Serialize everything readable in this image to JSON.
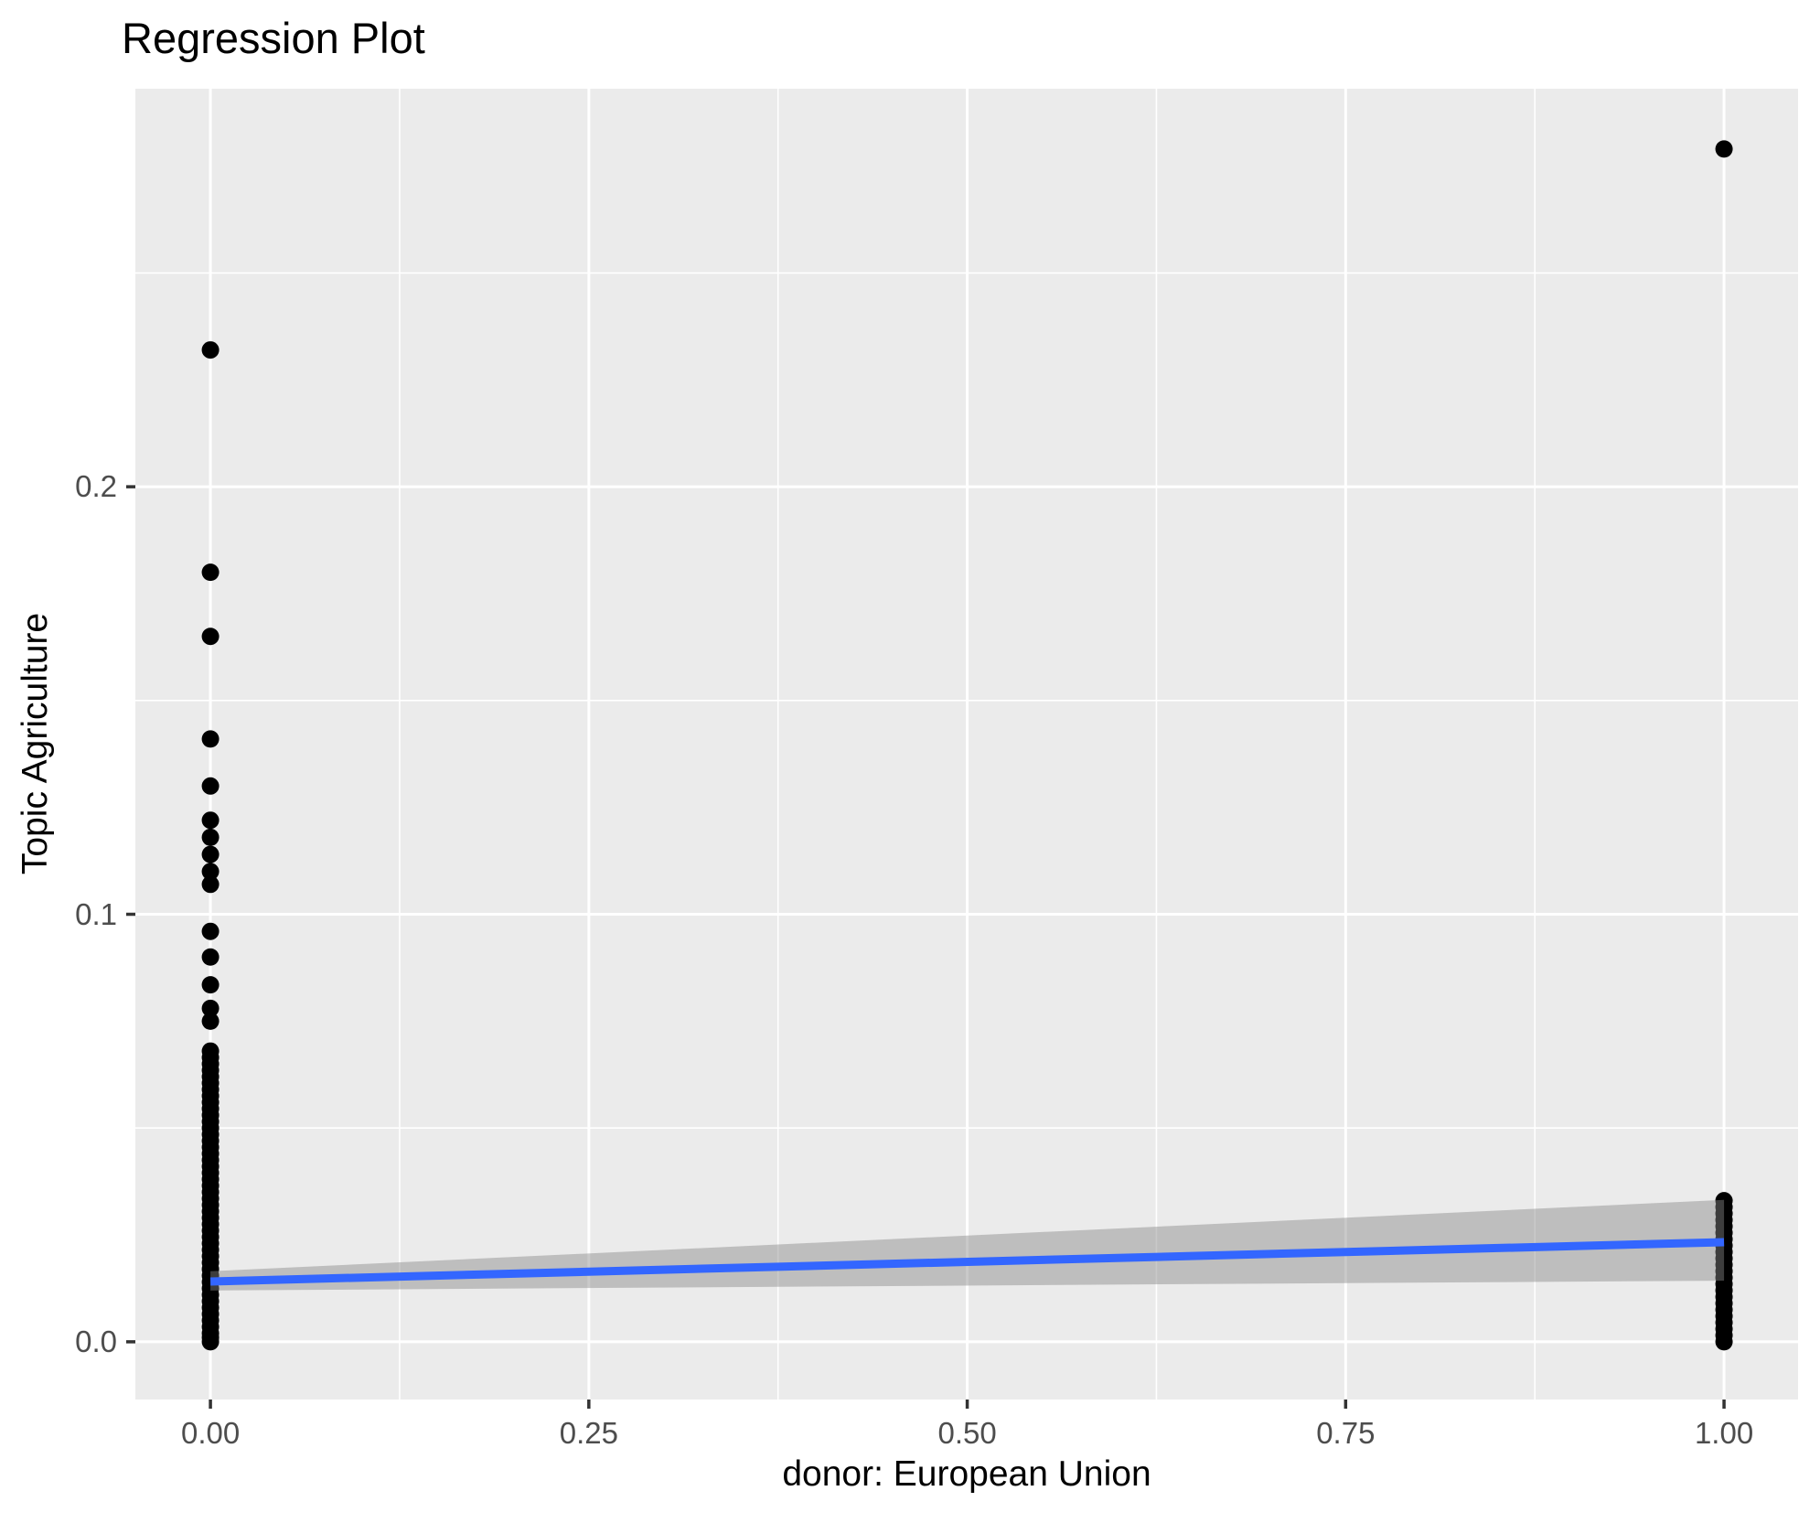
{
  "chart_data": {
    "type": "scatter",
    "title": "Regression Plot",
    "xlabel": "donor: European Union",
    "ylabel": "Topic Agriculture",
    "legend": "none",
    "grid": "on",
    "x_range": [
      -0.0496,
      1.0489
    ],
    "y_range": [
      -0.0135,
      0.2931
    ],
    "x_ticks": [
      {
        "v": 0.0,
        "label": "0.00"
      },
      {
        "v": 0.25,
        "label": "0.25"
      },
      {
        "v": 0.5,
        "label": "0.50"
      },
      {
        "v": 0.75,
        "label": "0.75"
      },
      {
        "v": 1.0,
        "label": "1.00"
      }
    ],
    "y_ticks": [
      {
        "v": 0.0,
        "label": "0.0"
      },
      {
        "v": 0.1,
        "label": "0.1"
      },
      {
        "v": 0.2,
        "label": "0.2"
      }
    ],
    "x_minor": [
      0.125,
      0.375,
      0.625,
      0.875
    ],
    "y_minor": [
      0.05,
      0.15,
      0.25
    ],
    "series": [
      {
        "name": "donor = 0",
        "x": 0,
        "y": [
          0.232,
          0.18,
          0.165,
          0.141,
          0.13,
          0.122,
          0.118,
          0.114,
          0.11,
          0.107,
          0.096,
          0.09,
          0.0835,
          0.078,
          0.075,
          0.068,
          0.0665,
          0.065,
          0.0635,
          0.062,
          0.0605,
          0.059,
          0.0575,
          0.056,
          0.0545,
          0.053,
          0.0515,
          0.05,
          0.0485,
          0.047,
          0.0455,
          0.044,
          0.0425,
          0.041,
          0.0395,
          0.038,
          0.0365,
          0.035,
          0.0335,
          0.032,
          0.0305,
          0.029,
          0.0275,
          0.026,
          0.0245,
          0.023,
          0.0215,
          0.02,
          0.0185,
          0.017,
          0.0155,
          0.014,
          0.0125,
          0.011,
          0.0095,
          0.008,
          0.0065,
          0.005,
          0.0035,
          0.002,
          0.001,
          0.0
        ]
      },
      {
        "name": "donor = 1",
        "x": 1,
        "y": [
          0.279,
          0.033,
          0.0315,
          0.03,
          0.0285,
          0.027,
          0.0255,
          0.024,
          0.0225,
          0.021,
          0.0195,
          0.018,
          0.0165,
          0.015,
          0.0135,
          0.012,
          0.0105,
          0.009,
          0.0075,
          0.006,
          0.0045,
          0.003,
          0.0015,
          0.0
        ]
      }
    ],
    "regression_line": {
      "x": [
        0,
        1
      ],
      "y": [
        0.0141,
        0.0233
      ]
    },
    "ci_band": {
      "x0_low": 0.012,
      "x0_high": 0.0165,
      "x1_low": 0.0143,
      "x1_high": 0.0332
    },
    "colors": {
      "panel_bg": "#EBEBEB",
      "gridline": "#FFFFFF",
      "point": "#000000",
      "regression_line": "#3366FF",
      "ci_band": "rgba(135,135,135,0.45)",
      "tick_label": "#4D4D4D",
      "tick_mark": "#333333",
      "title_text": "#000000"
    }
  }
}
